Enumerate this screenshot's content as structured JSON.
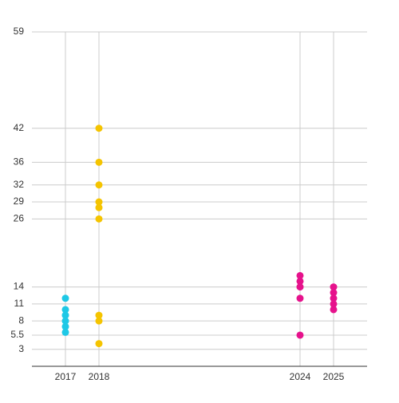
{
  "chart_data": {
    "type": "scatter",
    "xlim": [
      2016,
      2026
    ],
    "xticks": [
      2017,
      2018,
      2024,
      2025
    ],
    "ylim": [
      0,
      59
    ],
    "yticks": [
      3,
      5.5,
      8,
      11,
      14,
      26,
      29,
      32,
      36,
      42,
      59
    ],
    "grid": true,
    "series": [
      {
        "color": "#1ec8e6",
        "x": [
          2017,
          2017,
          2017,
          2017,
          2017,
          2017
        ],
        "values": [
          12,
          10,
          9,
          8,
          7,
          6
        ]
      },
      {
        "color": "#f5c400",
        "x": [
          2018,
          2018,
          2018,
          2018,
          2018,
          2018,
          2018,
          2018,
          2018
        ],
        "values": [
          42,
          36,
          32,
          29,
          28,
          26,
          9,
          8,
          4
        ]
      },
      {
        "color": "#e6128c",
        "x": [
          2024,
          2024,
          2024,
          2024,
          2024
        ],
        "values": [
          16,
          15,
          14,
          12,
          5.5
        ]
      },
      {
        "color": "#e6128c",
        "x": [
          2025,
          2025,
          2025,
          2025,
          2025
        ],
        "values": [
          14,
          13,
          12,
          11,
          10
        ]
      }
    ]
  }
}
